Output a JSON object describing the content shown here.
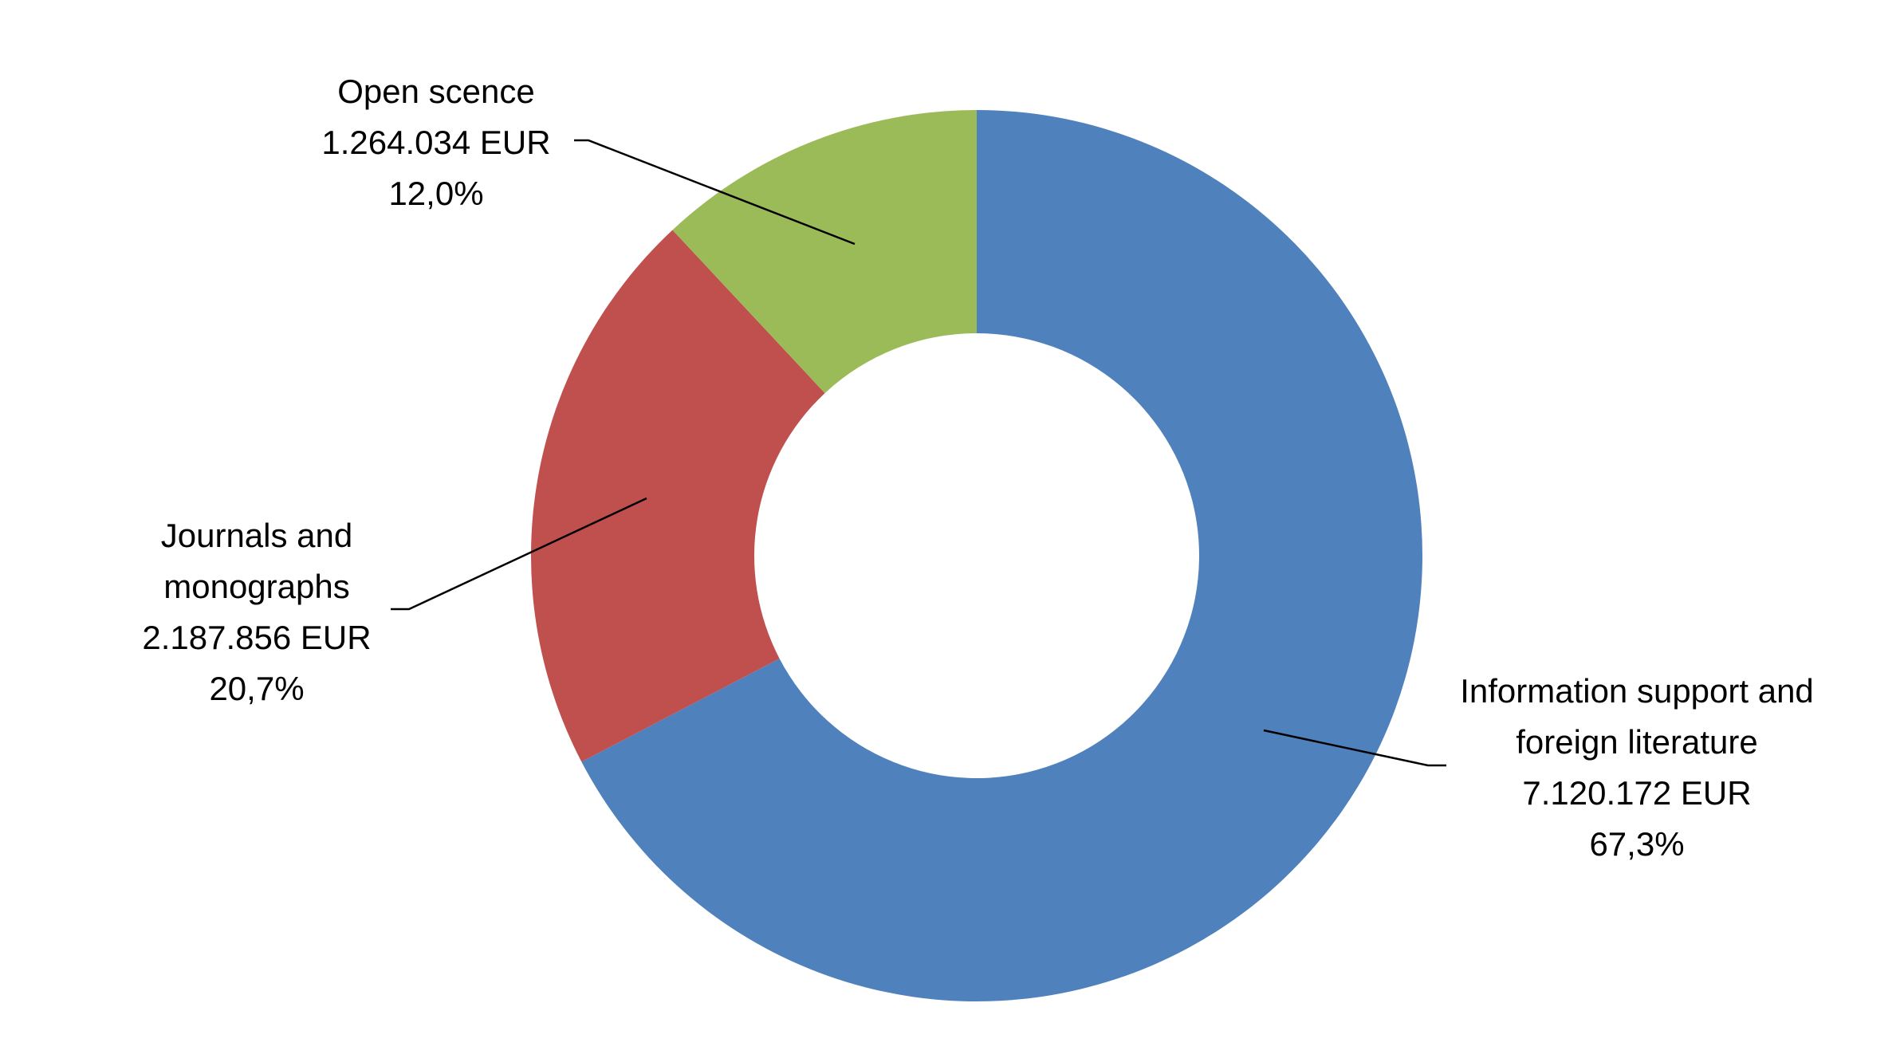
{
  "chart_data": {
    "type": "donut",
    "categories": [
      "Information support and foreign literature",
      "Journals and monographs",
      "Open scence"
    ],
    "values": [
      7120172,
      2187856,
      1264034
    ],
    "value_labels": [
      "7.120.172 EUR",
      "2.187.856 EUR",
      "1.264.034 EUR"
    ],
    "shares": [
      67.3,
      20.7,
      12.0
    ],
    "share_labels": [
      "67,3%",
      "20,7%",
      "12,0%"
    ],
    "colors": [
      "#4f81bd",
      "#c0504d",
      "#9bbb59"
    ]
  }
}
